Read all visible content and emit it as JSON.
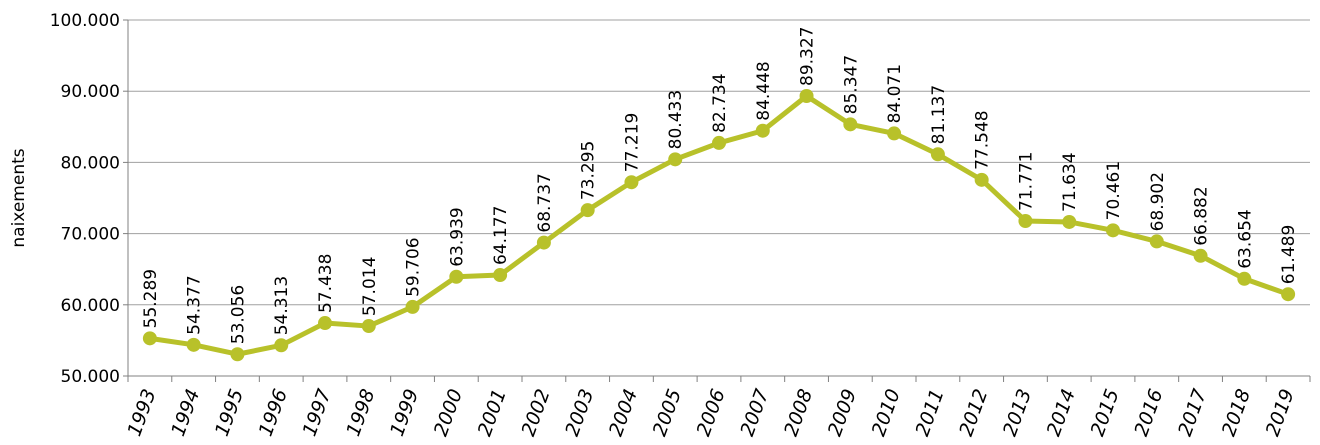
{
  "chart_data": {
    "type": "line",
    "y_label": "naixements",
    "categories": [
      "1993",
      "1994",
      "1995",
      "1996",
      "1997",
      "1998",
      "1999",
      "2000",
      "2001",
      "2002",
      "2003",
      "2004",
      "2005",
      "2006",
      "2007",
      "2008",
      "2009",
      "2010",
      "2011",
      "2012",
      "2013",
      "2014",
      "2015",
      "2016",
      "2017",
      "2018",
      "2019"
    ],
    "values": [
      55289,
      54377,
      53056,
      54313,
      57438,
      57014,
      59706,
      63939,
      64177,
      68737,
      73295,
      77219,
      80433,
      82734,
      84448,
      89327,
      85347,
      84071,
      81137,
      77548,
      71771,
      71634,
      70461,
      68902,
      66882,
      63654,
      61489
    ],
    "value_labels": [
      "55.289",
      "54.377",
      "53.056",
      "54.313",
      "57.438",
      "57.014",
      "59.706",
      "63.939",
      "64.177",
      "68.737",
      "73.295",
      "77.219",
      "80.433",
      "82.734",
      "84.448",
      "89.327",
      "85.347",
      "84.071",
      "81.137",
      "77.548",
      "71.771",
      "71.634",
      "70.461",
      "68.902",
      "66.882",
      "63.654",
      "61.489"
    ],
    "color": "#b8c12a",
    "ylim": [
      50000,
      100000
    ],
    "yticks": [
      {
        "value": 50000,
        "label": "50.000"
      },
      {
        "value": 60000,
        "label": "60.000"
      },
      {
        "value": 70000,
        "label": "70.000"
      },
      {
        "value": 80000,
        "label": "80.000"
      },
      {
        "value": 90000,
        "label": "90.000"
      },
      {
        "value": 100000,
        "label": "100.000"
      }
    ],
    "grid": true
  }
}
